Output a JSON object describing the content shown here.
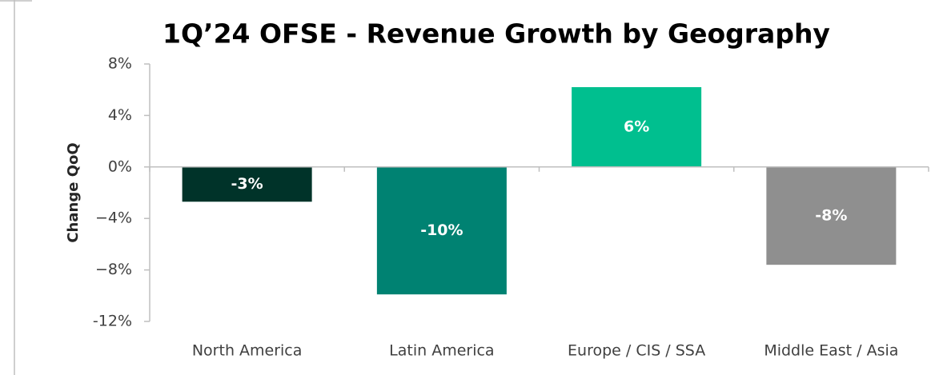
{
  "chart_data": {
    "type": "bar",
    "title": "1Q’24 OFSE - Revenue Growth by Geography",
    "y_axis_label": "Change QoQ",
    "categories": [
      "North America",
      "Latin America",
      "Europe / CIS / SSA",
      "Middle East / Asia"
    ],
    "values": [
      -2.7,
      -9.9,
      6.2,
      -7.6
    ],
    "value_labels": [
      "-3%",
      "-10%",
      "6%",
      "-8%"
    ],
    "colors": [
      "#003329",
      "#008272",
      "#00bf8f",
      "#8f8f8f"
    ],
    "ylim": [
      -12,
      8
    ],
    "yticks": [
      {
        "value": -12,
        "label": "-12%"
      },
      {
        "value": -8,
        "label": "−8%"
      },
      {
        "value": -4,
        "label": "−4%"
      },
      {
        "value": 0,
        "label": "0%"
      },
      {
        "value": 4,
        "label": "4%"
      },
      {
        "value": 8,
        "label": "8%"
      }
    ],
    "grid": false
  }
}
